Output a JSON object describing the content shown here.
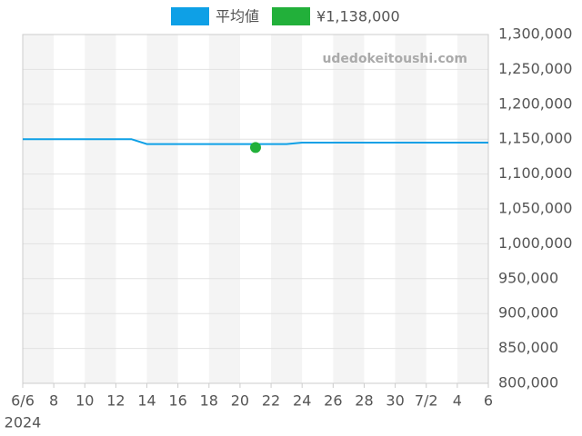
{
  "chart_data": {
    "type": "line",
    "watermark": "udedokeitoushi.com",
    "x_sublabel": "2024",
    "x": [
      "2024-06-06",
      "2024-06-07",
      "2024-06-08",
      "2024-06-09",
      "2024-06-10",
      "2024-06-11",
      "2024-06-12",
      "2024-06-13",
      "2024-06-14",
      "2024-06-15",
      "2024-06-16",
      "2024-06-17",
      "2024-06-18",
      "2024-06-19",
      "2024-06-20",
      "2024-06-21",
      "2024-06-22",
      "2024-06-23",
      "2024-06-24",
      "2024-06-25",
      "2024-06-26",
      "2024-06-27",
      "2024-06-28",
      "2024-06-29",
      "2024-06-30",
      "2024-07-01",
      "2024-07-02",
      "2024-07-03",
      "2024-07-04",
      "2024-07-05",
      "2024-07-06"
    ],
    "series": [
      {
        "name": "平均値",
        "color": "#0ea0e6",
        "values": [
          1150000,
          1150000,
          1150000,
          1150000,
          1150000,
          1150000,
          1150000,
          1150000,
          1143000,
          1143000,
          1143000,
          1143000,
          1143000,
          1143000,
          1143000,
          1143000,
          1143000,
          1143000,
          1145000,
          1145000,
          1145000,
          1145000,
          1145000,
          1145000,
          1145000,
          1145000,
          1145000,
          1145000,
          1145000,
          1145000,
          1145000
        ]
      },
      {
        "name": "¥1,138,000",
        "color": "#22b03a",
        "type": "scatter",
        "x": [
          "2024-06-21"
        ],
        "values": [
          1138000
        ]
      }
    ],
    "xlim": [
      "2024-06-06",
      "2024-07-06"
    ],
    "xticks": [
      {
        "value": "2024-06-06",
        "label": "6/6"
      },
      {
        "value": "2024-06-08",
        "label": "8"
      },
      {
        "value": "2024-06-10",
        "label": "10"
      },
      {
        "value": "2024-06-12",
        "label": "12"
      },
      {
        "value": "2024-06-14",
        "label": "14"
      },
      {
        "value": "2024-06-16",
        "label": "16"
      },
      {
        "value": "2024-06-18",
        "label": "18"
      },
      {
        "value": "2024-06-20",
        "label": "20"
      },
      {
        "value": "2024-06-22",
        "label": "22"
      },
      {
        "value": "2024-06-24",
        "label": "24"
      },
      {
        "value": "2024-06-26",
        "label": "26"
      },
      {
        "value": "2024-06-28",
        "label": "28"
      },
      {
        "value": "2024-06-30",
        "label": "30"
      },
      {
        "value": "2024-07-02",
        "label": "7/2"
      },
      {
        "value": "2024-07-04",
        "label": "4"
      },
      {
        "value": "2024-07-06",
        "label": "6"
      }
    ],
    "ylim": [
      800000,
      1300000
    ],
    "yticks": [
      {
        "value": 800000,
        "label": "800,000"
      },
      {
        "value": 850000,
        "label": "850,000"
      },
      {
        "value": 900000,
        "label": "900,000"
      },
      {
        "value": 950000,
        "label": "950,000"
      },
      {
        "value": 1000000,
        "label": "1,000,000"
      },
      {
        "value": 1050000,
        "label": "1,050,000"
      },
      {
        "value": 1100000,
        "label": "1,100,000"
      },
      {
        "value": 1150000,
        "label": "1,150,000"
      },
      {
        "value": 1200000,
        "label": "1,200,000"
      },
      {
        "value": 1250000,
        "label": "1,250,000"
      },
      {
        "value": 1300000,
        "label": "1,300,000"
      }
    ],
    "grid": true,
    "legend": "top"
  }
}
